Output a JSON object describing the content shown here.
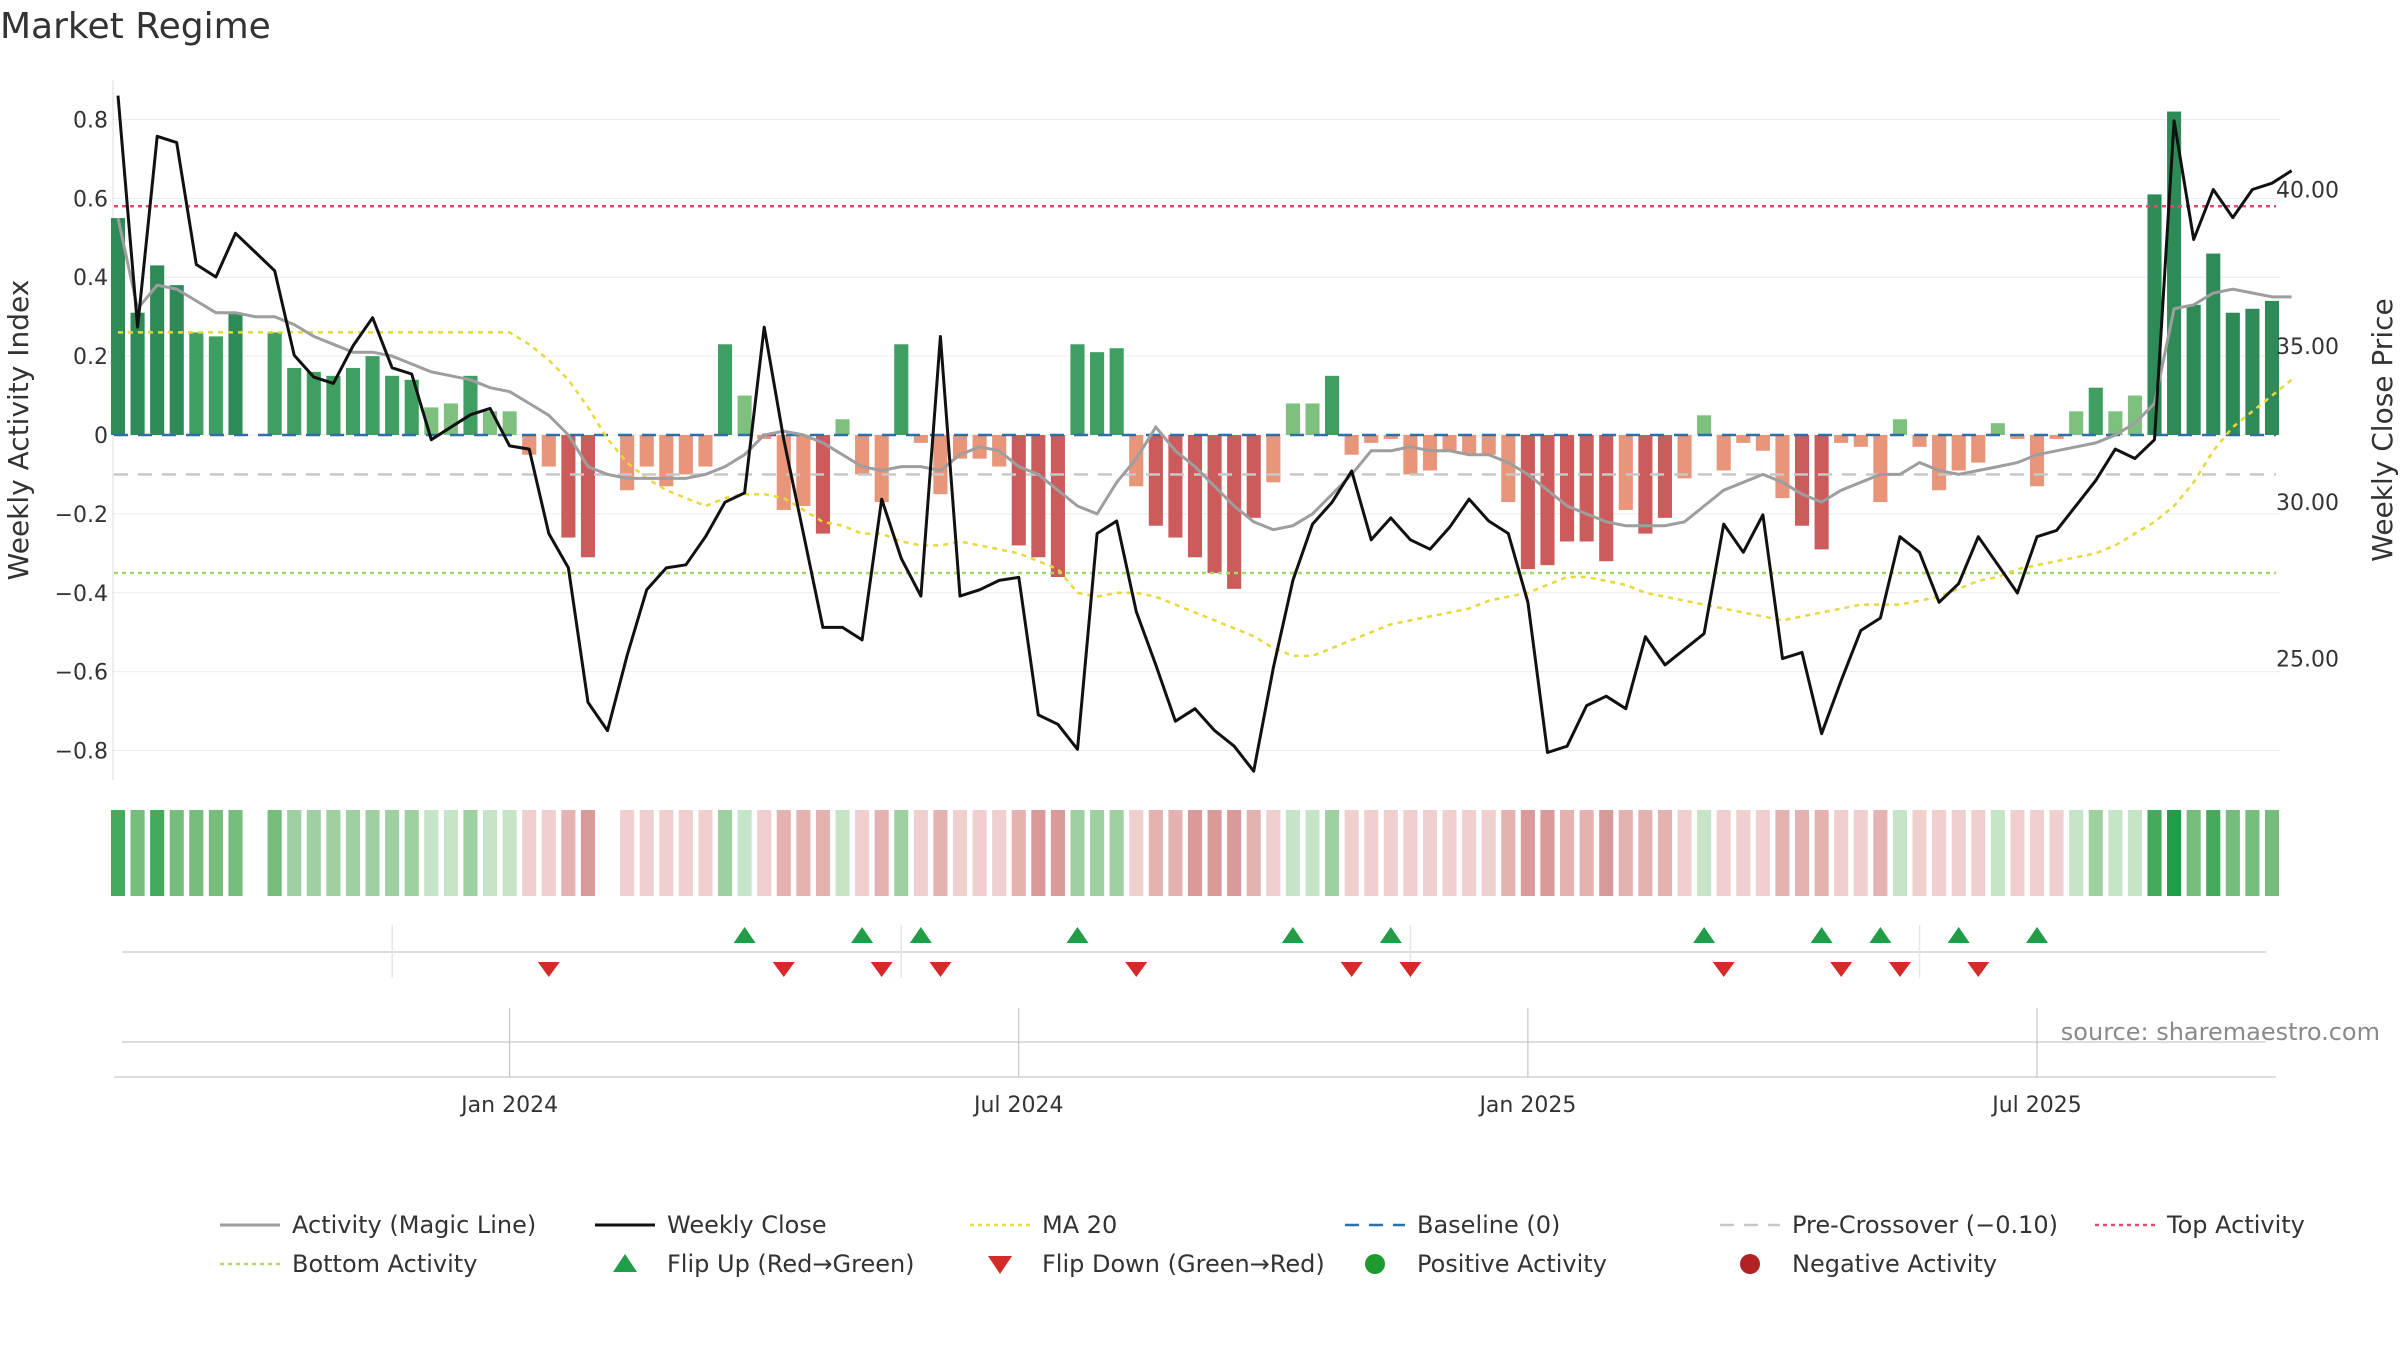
{
  "chart_data": {
    "type": "bar",
    "title": "Market Regime",
    "ylabel_left": "Weekly Activity Index",
    "ylabel_right": "Weekly Close Price",
    "ylim_left": [
      -0.9,
      0.9
    ],
    "ylim_right": [
      20.8,
      43.5
    ],
    "yticks_left": [
      {
        "v": 0.8,
        "label": "0.8"
      },
      {
        "v": 0.6,
        "label": "0.6"
      },
      {
        "v": 0.4,
        "label": "0.4"
      },
      {
        "v": 0.2,
        "label": "0.2"
      },
      {
        "v": 0,
        "label": "0"
      },
      {
        "v": -0.2,
        "label": "−0.2"
      },
      {
        "v": -0.4,
        "label": "−0.4"
      },
      {
        "v": -0.6,
        "label": "−0.6"
      },
      {
        "v": -0.8,
        "label": "−0.8"
      }
    ],
    "yticks_right": [
      {
        "v": 40,
        "label": "40.00"
      },
      {
        "v": 35,
        "label": "35.00"
      },
      {
        "v": 30,
        "label": "30.00"
      },
      {
        "v": 25,
        "label": "25.00"
      }
    ],
    "week_index_range": [
      0,
      109
    ],
    "xticks": [
      {
        "i": 20,
        "label": "Jan 2024"
      },
      {
        "i": 46,
        "label": "Jul 2024"
      },
      {
        "i": 72,
        "label": "Jan 2025"
      },
      {
        "i": 98,
        "label": "Jul 2025"
      }
    ],
    "activity": [
      0.55,
      0.31,
      0.43,
      0.38,
      0.26,
      0.25,
      0.31,
      null,
      0.26,
      0.17,
      0.16,
      0.15,
      0.17,
      0.2,
      0.15,
      0.14,
      0.07,
      0.08,
      0.15,
      0.06,
      0.06,
      -0.05,
      -0.08,
      -0.26,
      -0.31,
      null,
      -0.14,
      -0.08,
      -0.13,
      -0.1,
      -0.08,
      0.23,
      0.1,
      -0.01,
      -0.19,
      -0.18,
      -0.25,
      0.04,
      -0.1,
      -0.17,
      0.23,
      -0.02,
      -0.15,
      -0.06,
      -0.06,
      -0.08,
      -0.28,
      -0.31,
      -0.36,
      0.23,
      0.21,
      0.22,
      -0.13,
      -0.23,
      -0.26,
      -0.31,
      -0.35,
      -0.39,
      -0.21,
      -0.12,
      0.08,
      0.08,
      0.15,
      -0.05,
      -0.02,
      -0.01,
      -0.1,
      -0.09,
      -0.04,
      -0.05,
      -0.05,
      -0.17,
      -0.34,
      -0.33,
      -0.27,
      -0.27,
      -0.32,
      -0.19,
      -0.25,
      -0.21,
      -0.11,
      0.05,
      -0.09,
      -0.02,
      -0.04,
      -0.16,
      -0.23,
      -0.29,
      -0.02,
      -0.03,
      -0.17,
      0.04,
      -0.03,
      -0.14,
      -0.09,
      -0.07,
      0.03,
      -0.01,
      -0.13,
      -0.01,
      0.06,
      0.12,
      0.06,
      0.1,
      0.61,
      0.82,
      0.33,
      0.46,
      0.31,
      0.32,
      0.34
    ],
    "close": [
      43.0,
      35.6,
      41.7,
      41.5,
      37.6,
      37.2,
      38.6,
      38.0,
      37.4,
      34.7,
      34.0,
      33.8,
      35.0,
      35.9,
      34.3,
      34.1,
      32.0,
      32.4,
      32.8,
      33.0,
      31.8,
      31.7,
      29.0,
      27.9,
      23.6,
      22.7,
      25.1,
      27.2,
      27.9,
      28.0,
      28.9,
      30.0,
      30.3,
      35.6,
      32.0,
      29.0,
      26.0,
      26.0,
      25.6,
      30.1,
      28.2,
      27.0,
      35.3,
      27.0,
      27.2,
      27.5,
      27.6,
      23.2,
      22.9,
      22.1,
      29.0,
      29.4,
      26.5,
      24.8,
      23.0,
      23.4,
      22.7,
      22.2,
      21.4,
      24.7,
      27.5,
      29.3,
      30.0,
      31.0,
      28.8,
      29.5,
      28.8,
      28.5,
      29.2,
      30.1,
      29.4,
      29.0,
      26.8,
      22.0,
      22.2,
      23.5,
      23.8,
      23.4,
      25.7,
      24.8,
      25.3,
      25.8,
      29.3,
      28.4,
      29.6,
      25.0,
      25.2,
      22.6,
      24.3,
      25.9,
      26.3,
      28.9,
      28.4,
      26.8,
      27.4,
      28.9,
      28.0,
      27.1,
      28.9,
      29.1,
      29.9,
      30.7,
      31.7,
      31.4,
      32.0,
      42.2,
      38.4,
      40.0,
      39.1,
      40.0,
      40.2,
      40.6
    ],
    "magic_line": [
      0.55,
      0.32,
      0.38,
      0.37,
      0.34,
      0.31,
      0.31,
      0.3,
      0.3,
      0.28,
      0.25,
      0.23,
      0.21,
      0.21,
      0.2,
      0.18,
      0.16,
      0.15,
      0.14,
      0.12,
      0.11,
      0.08,
      0.05,
      0.0,
      -0.08,
      -0.1,
      -0.11,
      -0.11,
      -0.11,
      -0.11,
      -0.1,
      -0.08,
      -0.05,
      0.0,
      0.01,
      0.0,
      -0.02,
      -0.05,
      -0.08,
      -0.09,
      -0.08,
      -0.08,
      -0.09,
      -0.05,
      -0.03,
      -0.04,
      -0.08,
      -0.1,
      -0.14,
      -0.18,
      -0.2,
      -0.12,
      -0.06,
      0.02,
      -0.04,
      -0.08,
      -0.13,
      -0.18,
      -0.22,
      -0.24,
      -0.23,
      -0.2,
      -0.15,
      -0.1,
      -0.04,
      -0.04,
      -0.03,
      -0.04,
      -0.04,
      -0.05,
      -0.05,
      -0.07,
      -0.1,
      -0.14,
      -0.18,
      -0.2,
      -0.22,
      -0.23,
      -0.23,
      -0.23,
      -0.22,
      -0.18,
      -0.14,
      -0.12,
      -0.1,
      -0.12,
      -0.15,
      -0.17,
      -0.14,
      -0.12,
      -0.1,
      -0.1,
      -0.07,
      -0.09,
      -0.1,
      -0.09,
      -0.08,
      -0.07,
      -0.05,
      -0.04,
      -0.03,
      -0.02,
      0.0,
      0.03,
      0.08,
      0.32,
      0.33,
      0.36,
      0.37,
      0.36,
      0.35,
      0.35
    ],
    "ma20": [
      0.26,
      0.26,
      0.26,
      0.26,
      0.26,
      0.26,
      0.26,
      0.26,
      0.26,
      0.26,
      0.26,
      0.26,
      0.26,
      0.26,
      0.26,
      0.26,
      0.26,
      0.26,
      0.26,
      0.26,
      0.26,
      0.23,
      0.19,
      0.14,
      0.07,
      -0.01,
      -0.07,
      -0.11,
      -0.14,
      -0.16,
      -0.18,
      -0.16,
      -0.15,
      -0.15,
      -0.16,
      -0.19,
      -0.22,
      -0.23,
      -0.25,
      -0.25,
      -0.27,
      -0.28,
      -0.28,
      -0.27,
      -0.28,
      -0.29,
      -0.3,
      -0.32,
      -0.34,
      -0.4,
      -0.41,
      -0.4,
      -0.4,
      -0.41,
      -0.43,
      -0.45,
      -0.47,
      -0.49,
      -0.51,
      -0.54,
      -0.56,
      -0.56,
      -0.54,
      -0.52,
      -0.5,
      -0.48,
      -0.47,
      -0.46,
      -0.45,
      -0.44,
      -0.42,
      -0.41,
      -0.4,
      -0.38,
      -0.36,
      -0.36,
      -0.37,
      -0.38,
      -0.4,
      -0.41,
      -0.42,
      -0.43,
      -0.44,
      -0.45,
      -0.46,
      -0.47,
      -0.46,
      -0.45,
      -0.44,
      -0.43,
      -0.43,
      -0.43,
      -0.42,
      -0.41,
      -0.39,
      -0.37,
      -0.36,
      -0.34,
      -0.33,
      -0.32,
      -0.31,
      -0.3,
      -0.28,
      -0.25,
      -0.22,
      -0.18,
      -0.12,
      -0.04,
      0.02,
      0.06,
      0.1,
      0.14
    ],
    "baseline": 0,
    "pre_crossover": -0.1,
    "top_activity": 0.58,
    "bottom_activity": -0.35,
    "flip_up_weeks": [
      32,
      38,
      41,
      49,
      60,
      65,
      81,
      87,
      90,
      94,
      98
    ],
    "flip_down_weeks": [
      22,
      34,
      39,
      42,
      52,
      63,
      66,
      82,
      88,
      91,
      95
    ],
    "source_note": "source: sharemaestro.com",
    "legend": [
      {
        "key": "magic",
        "label": "Activity (Magic Line)",
        "color": "#9e9e9e"
      },
      {
        "key": "close",
        "label": "Weekly Close",
        "color": "#111111"
      },
      {
        "key": "ma20",
        "label": "MA 20",
        "color": "#e8d83a"
      },
      {
        "key": "baseline",
        "label": "Baseline (0)",
        "color": "#2e6fa6"
      },
      {
        "key": "pre",
        "label": "Pre-Crossover (−0.10)",
        "color": "#c8c8c8"
      },
      {
        "key": "top",
        "label": "Top Activity",
        "color": "#d9506e"
      },
      {
        "key": "bottom",
        "label": "Bottom Activity",
        "color": "#a8d86a"
      },
      {
        "key": "flipup",
        "label": "Flip Up (Red→Green)",
        "color": "#1e9e47"
      },
      {
        "key": "flipdown",
        "label": "Flip Down (Green→Red)",
        "color": "#d42a2a"
      },
      {
        "key": "pos",
        "label": "Positive Activity",
        "color": "#1e9a2e"
      },
      {
        "key": "neg",
        "label": "Negative Activity",
        "color": "#b22222"
      }
    ]
  }
}
